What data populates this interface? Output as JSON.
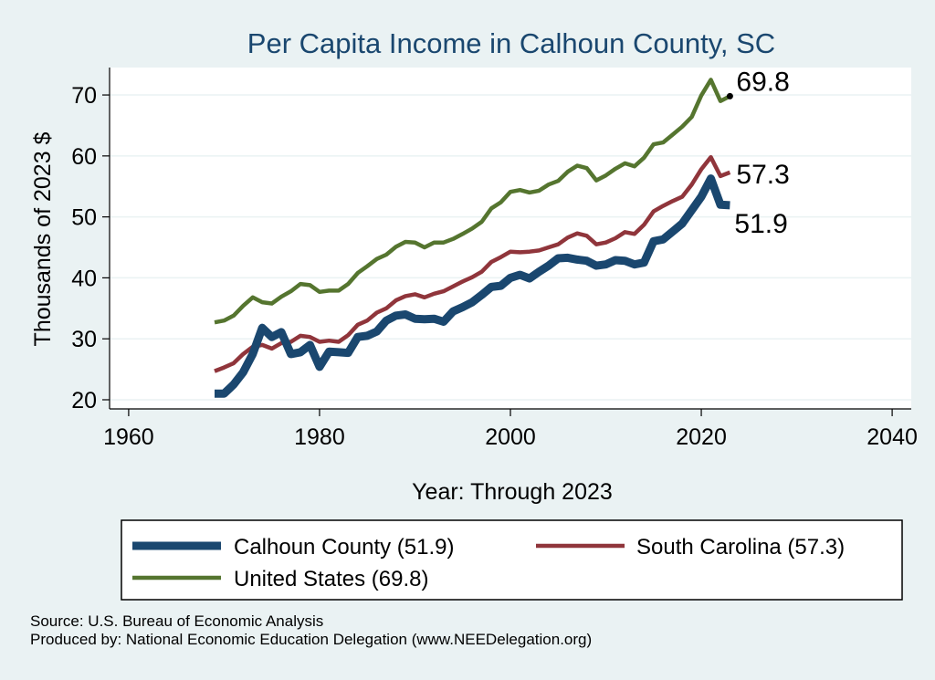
{
  "chart_data": {
    "type": "line",
    "title": "Per Capita Income in Calhoun County, SC",
    "xlabel": "Year: Through 2023",
    "ylabel": "Thousands of 2023 $",
    "xlim": [
      1958,
      2042
    ],
    "ylim": [
      18.5,
      74.5
    ],
    "xticks": [
      1960,
      1980,
      2000,
      2020,
      2040
    ],
    "yticks": [
      20,
      30,
      40,
      50,
      60,
      70
    ],
    "x": [
      1969,
      1970,
      1971,
      1972,
      1973,
      1974,
      1975,
      1976,
      1977,
      1978,
      1979,
      1980,
      1981,
      1982,
      1983,
      1984,
      1985,
      1986,
      1987,
      1988,
      1989,
      1990,
      1991,
      1992,
      1993,
      1994,
      1995,
      1996,
      1997,
      1998,
      1999,
      2000,
      2001,
      2002,
      2003,
      2004,
      2005,
      2006,
      2007,
      2008,
      2009,
      2010,
      2011,
      2012,
      2013,
      2014,
      2015,
      2016,
      2017,
      2018,
      2019,
      2020,
      2021,
      2022,
      2023
    ],
    "series": [
      {
        "name": "Calhoun County",
        "color": "#1a476f",
        "width": 9,
        "values": [
          21.0,
          21.0,
          22.5,
          24.5,
          27.5,
          31.8,
          30.3,
          31.1,
          27.5,
          27.8,
          29.0,
          25.4,
          27.9,
          27.8,
          27.7,
          30.3,
          30.5,
          31.2,
          33.0,
          33.8,
          34.0,
          33.3,
          33.2,
          33.3,
          32.8,
          34.5,
          35.2,
          36.0,
          37.2,
          38.5,
          38.7,
          40.0,
          40.5,
          39.9,
          41.0,
          42.0,
          43.2,
          43.3,
          43.0,
          42.8,
          42.0,
          42.2,
          42.9,
          42.8,
          42.2,
          42.5,
          46.0,
          46.3,
          47.6,
          48.9,
          51.1,
          53.3,
          56.3,
          52.0,
          51.9
        ]
      },
      {
        "name": "South Carolina",
        "color": "#90353b",
        "width": 4.5,
        "values": [
          24.7,
          25.3,
          26.0,
          27.5,
          28.7,
          29.0,
          28.4,
          29.3,
          29.5,
          30.5,
          30.3,
          29.5,
          29.7,
          29.5,
          30.6,
          32.3,
          33.0,
          34.3,
          35.0,
          36.3,
          37.0,
          37.3,
          36.8,
          37.4,
          37.8,
          38.6,
          39.4,
          40.1,
          41.0,
          42.6,
          43.4,
          44.3,
          44.2,
          44.3,
          44.5,
          45.0,
          45.5,
          46.6,
          47.3,
          46.9,
          45.5,
          45.8,
          46.5,
          47.5,
          47.2,
          48.7,
          50.9,
          51.8,
          52.6,
          53.3,
          55.3,
          57.8,
          59.8,
          56.7,
          57.3
        ]
      },
      {
        "name": "United States",
        "color": "#55752f",
        "width": 4.5,
        "values": [
          32.7,
          33.0,
          33.8,
          35.4,
          36.8,
          36.0,
          35.8,
          36.9,
          37.8,
          39.0,
          38.8,
          37.7,
          37.9,
          37.9,
          39.0,
          40.8,
          41.9,
          43.1,
          43.8,
          45.1,
          45.9,
          45.8,
          45.0,
          45.8,
          45.8,
          46.4,
          47.2,
          48.1,
          49.2,
          51.4,
          52.4,
          54.1,
          54.4,
          54.0,
          54.3,
          55.3,
          55.9,
          57.4,
          58.4,
          58.0,
          56.0,
          56.8,
          57.9,
          58.8,
          58.3,
          59.7,
          61.9,
          62.2,
          63.5,
          64.8,
          66.4,
          69.9,
          72.5,
          69.0,
          69.8
        ]
      }
    ],
    "end_labels": [
      "51.9",
      "57.3",
      "69.8"
    ],
    "legend": {
      "position": "bottom",
      "items": [
        "Calhoun County (51.9)",
        "South Carolina (57.3)",
        "United States (69.8)"
      ]
    }
  },
  "footer": {
    "source": "Source: U.S. Bureau of Economic Analysis",
    "producer": "Produced by: National Economic Education Delegation (www.NEEDelegation.org)"
  }
}
